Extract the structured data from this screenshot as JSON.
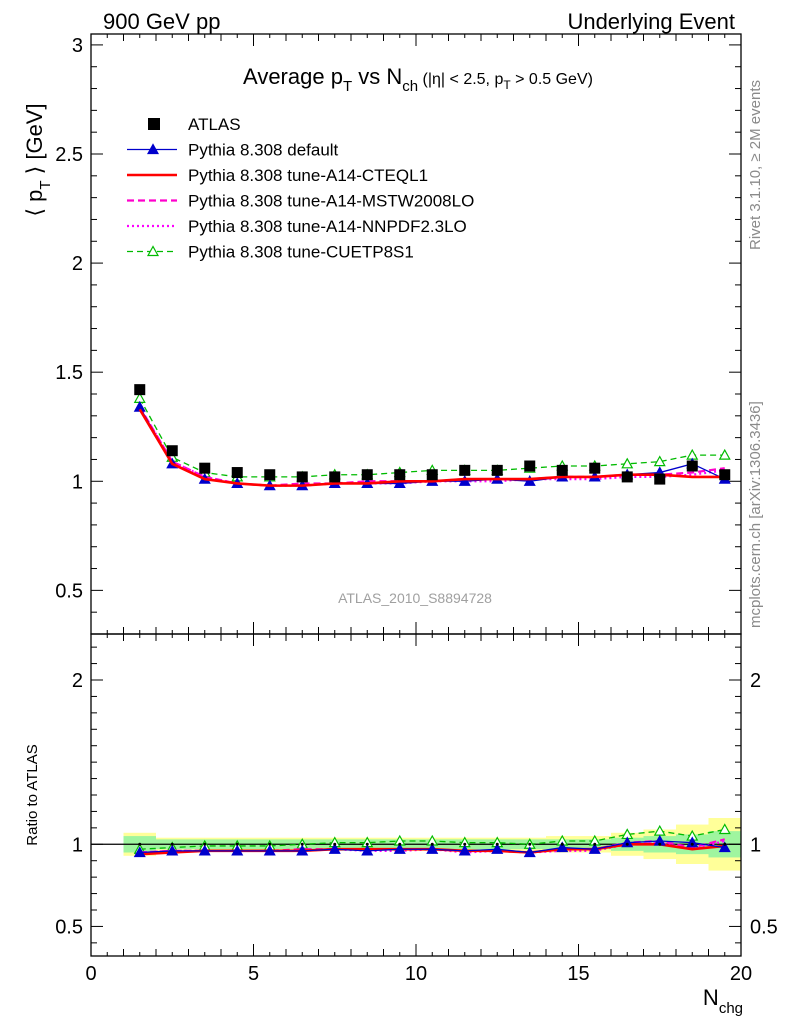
{
  "header": {
    "left": "900 GeV pp",
    "right": "Underlying Event"
  },
  "main_title": {
    "prefix": "Average p",
    "prefix_sub": "T",
    "mid": " vs N",
    "mid_sub": "ch",
    "cuts_a": " (|η| < 2.5, p",
    "cuts_sub": "T",
    "cuts_b": " > 0.5 GeV)"
  },
  "side_labels": {
    "rivet": "Rivet 3.1.10, ≥ 2M events",
    "mcplots": "mcplots.cern.ch [arXiv:1306.3436]"
  },
  "analysis_id": "ATLAS_2010_S8894728",
  "colors": {
    "atlas": "#000000",
    "default": "#0000cc",
    "cteql1": "#ff0000",
    "mstw": "#ff00cc",
    "nnpdf": "#ff00ff",
    "cuetp": "#00bb00",
    "band_inner": "#9ff59f",
    "band_outer": "#ffff99"
  },
  "chart_data": [
    {
      "type": "scatter",
      "panel": "main",
      "ylabel_parts": [
        "⟨ p",
        "T",
        " ⟩ [GeV]"
      ],
      "xlim": [
        0,
        20
      ],
      "ylim": [
        0.3,
        3.05
      ],
      "y_ticks": [
        0.5,
        1,
        1.5,
        2,
        2.5,
        3
      ],
      "y_tick_labels": [
        "0.5",
        "1",
        "1.5",
        "2",
        "2.5",
        "3"
      ],
      "x": [
        1.5,
        2.5,
        3.5,
        4.5,
        5.5,
        6.5,
        7.5,
        8.5,
        9.5,
        10.5,
        11.5,
        12.5,
        13.5,
        14.5,
        15.5,
        16.5,
        17.5,
        18.5,
        19.5
      ],
      "series": [
        {
          "name": "ATLAS",
          "key": "atlas",
          "style": "square",
          "values": [
            1.42,
            1.14,
            1.06,
            1.04,
            1.03,
            1.02,
            1.02,
            1.03,
            1.03,
            1.03,
            1.05,
            1.05,
            1.07,
            1.05,
            1.06,
            1.02,
            1.01,
            1.07,
            1.03
          ]
        },
        {
          "name": "Pythia 8.308 default",
          "key": "default",
          "style": "line-tri",
          "values": [
            1.34,
            1.08,
            1.01,
            0.99,
            0.98,
            0.98,
            0.99,
            0.99,
            0.99,
            1.0,
            1.0,
            1.01,
            1.0,
            1.02,
            1.02,
            1.03,
            1.04,
            1.08,
            1.01
          ]
        },
        {
          "name": "Pythia 8.308 tune-A14-CTEQL1",
          "key": "cteql1",
          "style": "solid",
          "values": [
            1.33,
            1.08,
            1.01,
            0.99,
            0.98,
            0.98,
            0.99,
            0.99,
            1.0,
            1.0,
            1.01,
            1.01,
            1.01,
            1.02,
            1.02,
            1.03,
            1.03,
            1.02,
            1.02
          ]
        },
        {
          "name": "Pythia 8.308 tune-A14-MSTW2008LO",
          "key": "mstw",
          "style": "dashed",
          "values": [
            1.34,
            1.09,
            1.02,
            0.99,
            0.98,
            0.99,
            0.99,
            1.0,
            1.0,
            1.0,
            1.01,
            1.01,
            1.01,
            1.02,
            1.02,
            1.03,
            1.03,
            1.04,
            1.06
          ]
        },
        {
          "name": "Pythia 8.308 tune-A14-NNPDF2.3LO",
          "key": "nnpdf",
          "style": "dotted",
          "values": [
            1.34,
            1.09,
            1.02,
            0.99,
            0.98,
            0.98,
            0.99,
            0.99,
            0.99,
            1.0,
            1.0,
            1.0,
            1.01,
            1.01,
            1.01,
            1.02,
            1.02,
            1.03,
            1.05
          ]
        },
        {
          "name": "Pythia 8.308 tune-CUETP8S1",
          "key": "cuetp",
          "style": "dash-tri",
          "values": [
            1.38,
            1.11,
            1.04,
            1.02,
            1.02,
            1.02,
            1.03,
            1.03,
            1.04,
            1.05,
            1.05,
            1.05,
            1.06,
            1.07,
            1.07,
            1.08,
            1.09,
            1.12,
            1.12
          ]
        }
      ],
      "legend_position": "top-left"
    },
    {
      "type": "line",
      "panel": "ratio",
      "ylabel": "Ratio to ATLAS",
      "xlabel_parts": [
        "N",
        "chg"
      ],
      "xlim": [
        0,
        20
      ],
      "ylim": [
        0.32,
        2.28
      ],
      "x_ticks": [
        0,
        5,
        10,
        15,
        20
      ],
      "x_tick_labels": [
        "0",
        "5",
        "10",
        "15",
        "20"
      ],
      "y_ticks": [
        0.5,
        1,
        2
      ],
      "y_tick_labels": [
        "0.5",
        "1",
        "2"
      ],
      "band_x_edges": [
        1,
        2,
        3,
        4,
        5,
        6,
        7,
        8,
        9,
        10,
        11,
        12,
        13,
        14,
        15,
        16,
        17,
        18,
        19,
        20
      ],
      "band_inner": [
        0.05,
        0.03,
        0.03,
        0.03,
        0.03,
        0.03,
        0.03,
        0.03,
        0.03,
        0.03,
        0.03,
        0.03,
        0.03,
        0.03,
        0.03,
        0.04,
        0.05,
        0.06,
        0.08
      ],
      "band_outer": [
        0.07,
        0.04,
        0.04,
        0.04,
        0.04,
        0.04,
        0.04,
        0.04,
        0.04,
        0.04,
        0.04,
        0.04,
        0.04,
        0.05,
        0.05,
        0.07,
        0.09,
        0.12,
        0.16
      ],
      "x": [
        1.5,
        2.5,
        3.5,
        4.5,
        5.5,
        6.5,
        7.5,
        8.5,
        9.5,
        10.5,
        11.5,
        12.5,
        13.5,
        14.5,
        15.5,
        16.5,
        17.5,
        18.5,
        19.5
      ],
      "series": [
        {
          "key": "default",
          "style": "line-tri",
          "values": [
            0.95,
            0.96,
            0.96,
            0.96,
            0.96,
            0.96,
            0.97,
            0.96,
            0.97,
            0.97,
            0.96,
            0.97,
            0.95,
            0.98,
            0.97,
            1.01,
            1.02,
            1.01,
            0.98
          ]
        },
        {
          "key": "cteql1",
          "style": "solid",
          "values": [
            0.94,
            0.95,
            0.96,
            0.96,
            0.96,
            0.96,
            0.97,
            0.97,
            0.97,
            0.97,
            0.96,
            0.96,
            0.95,
            0.97,
            0.97,
            1.0,
            1.0,
            0.97,
            0.99
          ]
        },
        {
          "key": "mstw",
          "style": "dashed",
          "values": [
            0.95,
            0.96,
            0.96,
            0.96,
            0.96,
            0.97,
            0.97,
            0.97,
            0.97,
            0.97,
            0.96,
            0.96,
            0.95,
            0.97,
            0.97,
            1.01,
            1.02,
            0.98,
            1.03
          ]
        },
        {
          "key": "nnpdf",
          "style": "dotted",
          "values": [
            0.95,
            0.96,
            0.96,
            0.96,
            0.96,
            0.96,
            0.97,
            0.96,
            0.96,
            0.97,
            0.95,
            0.96,
            0.95,
            0.96,
            0.96,
            1.0,
            1.01,
            0.97,
            1.02
          ]
        },
        {
          "key": "cuetp",
          "style": "dash-tri",
          "values": [
            0.97,
            0.98,
            0.99,
            0.99,
            0.99,
            1.0,
            1.01,
            1.01,
            1.02,
            1.02,
            1.01,
            1.01,
            1.0,
            1.02,
            1.02,
            1.06,
            1.08,
            1.05,
            1.09
          ]
        }
      ]
    }
  ]
}
